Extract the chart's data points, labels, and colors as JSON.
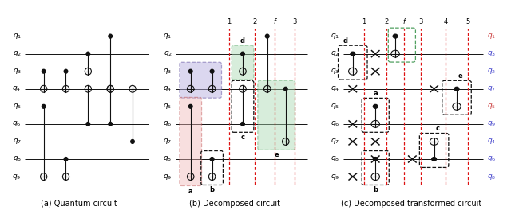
{
  "figure_width": 6.4,
  "figure_height": 2.69,
  "dpi": 100,
  "blue_fill": "#b8b0e0",
  "blue_border": "#6050a0",
  "pink_fill": "#f0b8b8",
  "pink_border": "#c05050",
  "green_fill": "#a8d8b0",
  "green_border": "#50a060",
  "red_dashed_color": "#dd1111",
  "wire_color": "#111111",
  "gate_color": "#111111",
  "right_label_red": "#cc4444",
  "right_label_blue": "#4444cc",
  "panel_titles": [
    "(a) Quantum circuit",
    "(b) Decomposed circuit",
    "(c) Decomposed transformed circuit"
  ]
}
